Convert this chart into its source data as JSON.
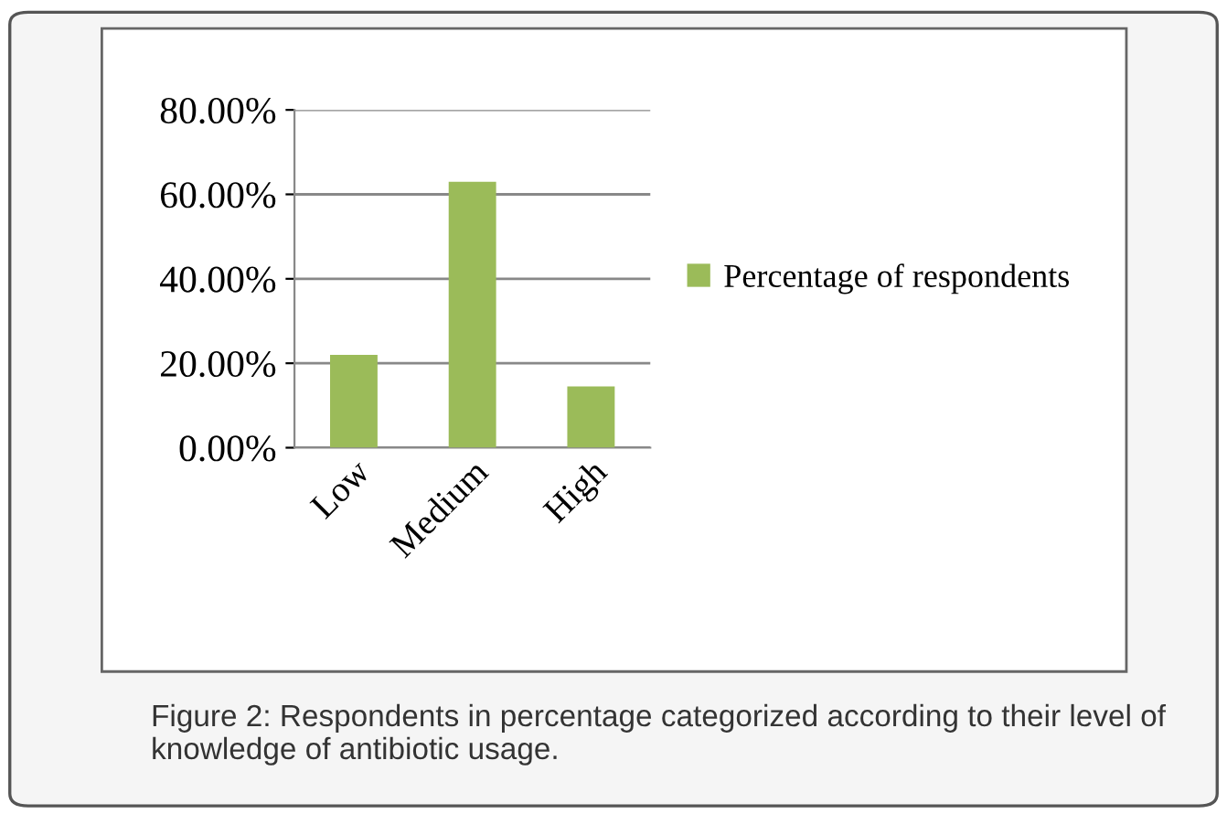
{
  "chart_data": {
    "type": "bar",
    "categories": [
      "Low",
      "Medium",
      "High"
    ],
    "series": [
      {
        "name": "Percentage of respondents",
        "color": "#9bbb59",
        "values": [
          22,
          63,
          14.5
        ]
      }
    ],
    "ylim": [
      0,
      80
    ],
    "yticks": [
      {
        "value": 0,
        "label": "0.00%"
      },
      {
        "value": 20,
        "label": "20.00%"
      },
      {
        "value": 40,
        "label": "40.00%"
      },
      {
        "value": 60,
        "label": "60.00%"
      },
      {
        "value": 80,
        "label": "80.00%"
      }
    ],
    "grid": "y",
    "legend": "right",
    "annotations": [
      "Figure 2: Respondents in percentage categorized according to their level of knowledge of antibiotic usage."
    ]
  }
}
